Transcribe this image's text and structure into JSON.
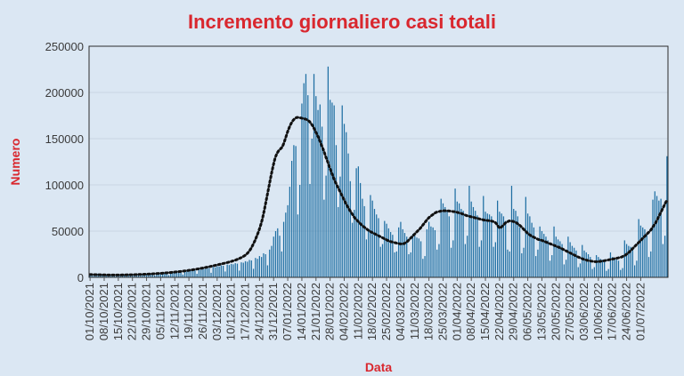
{
  "chart_data": {
    "type": "bar",
    "title": "Incremento giornaliero casi totali",
    "xlabel": "Data",
    "ylabel": "Numero",
    "ylim": [
      0,
      250000
    ],
    "y_ticks": [
      0,
      50000,
      100000,
      150000,
      200000,
      250000
    ],
    "y_tick_labels": [
      "0",
      "50000",
      "100000",
      "150000",
      "200000",
      "250000"
    ],
    "x_tick_labels": [
      "01/10/2021",
      "08/10/2021",
      "15/10/2021",
      "22/10/2021",
      "29/10/2021",
      "05/11/2021",
      "12/11/2021",
      "19/11/2021",
      "26/11/2021",
      "03/12/2021",
      "10/12/2021",
      "17/12/2021",
      "24/12/2021",
      "31/12/2021",
      "07/01/2022",
      "14/01/2022",
      "21/01/2022",
      "28/01/2022",
      "04/02/2022",
      "11/02/2022",
      "18/02/2022",
      "25/02/2022",
      "04/03/2022",
      "11/03/2022",
      "18/03/2022",
      "25/03/2022",
      "01/04/2022",
      "08/04/2022",
      "15/04/2022",
      "22/04/2022",
      "29/04/2022",
      "06/05/2022",
      "13/05/2022",
      "20/05/2022",
      "27/05/2022",
      "03/06/2022",
      "10/06/2022",
      "17/06/2022",
      "24/06/2022",
      "01/07/2022"
    ],
    "bar_color": "#1f6fa3",
    "trend_color": "#111111",
    "grid": true,
    "series": [
      {
        "type": "bar",
        "values": [
          3200,
          2800,
          3500,
          1800,
          4100,
          3600,
          3300,
          3000,
          2600,
          3100,
          2700,
          1500,
          3000,
          2500,
          2600,
          2300,
          2500,
          2800,
          1400,
          2700,
          2400,
          2900,
          2600,
          3100,
          3400,
          1700,
          3600,
          3300,
          3800,
          3500,
          4200,
          4000,
          2100,
          4300,
          4100,
          4600,
          4300,
          4900,
          4700,
          2400,
          5200,
          5000,
          5600,
          5400,
          6100,
          5900,
          3000,
          6800,
          6500,
          7300,
          7000,
          8000,
          7700,
          3800,
          8900,
          8500,
          9400,
          9100,
          10300,
          9900,
          4900,
          11300,
          10800,
          12100,
          11700,
          12900,
          12500,
          6300,
          13800,
          13300,
          14400,
          14100,
          15300,
          14800,
          7300,
          16200,
          15800,
          17400,
          16900,
          18800,
          18300,
          9200,
          21000,
          20000,
          23000,
          22000,
          26000,
          25000,
          13000,
          30000,
          34000,
          44000,
          50000,
          53000,
          45000,
          28000,
          60000,
          70000,
          78000,
          98000,
          126000,
          143000,
          142000,
          68000,
          100000,
          188000,
          210000,
          220000,
          197000,
          101000,
          150000,
          220000,
          196000,
          181000,
          187000,
          163000,
          84000,
          110000,
          228000,
          192000,
          189000,
          186000,
          143000,
          76000,
          109000,
          186000,
          166000,
          157000,
          134000,
          104000,
          59000,
          73000,
          118000,
          120000,
          102000,
          85000,
          77000,
          41000,
          51000,
          89000,
          83000,
          74000,
          68000,
          64000,
          33000,
          36000,
          61000,
          58000,
          53000,
          49000,
          46000,
          27000,
          28000,
          54000,
          60000,
          52000,
          48000,
          44000,
          25000,
          27000,
          47000,
          45000,
          43000,
          42000,
          39000,
          20000,
          23000,
          52000,
          60000,
          55000,
          54000,
          51000,
          30000,
          36000,
          85000,
          80000,
          76000,
          72000,
          66000,
          32000,
          40000,
          96000,
          82000,
          80000,
          74000,
          72000,
          36000,
          45000,
          99000,
          82000,
          76000,
          72000,
          67000,
          33000,
          40000,
          88000,
          71000,
          69000,
          68000,
          66000,
          33000,
          38000,
          83000,
          71000,
          69000,
          66000,
          61000,
          30000,
          28000,
          99000,
          74000,
          72000,
          66000,
          54000,
          26000,
          32000,
          87000,
          69000,
          66000,
          59000,
          54000,
          23000,
          30000,
          55000,
          50000,
          47000,
          44000,
          40000,
          18000,
          24000,
          55000,
          44000,
          41000,
          39000,
          36000,
          14000,
          19000,
          44000,
          38000,
          34000,
          32000,
          29000,
          11000,
          15000,
          35000,
          29000,
          27000,
          25000,
          22000,
          9000,
          11000,
          24000,
          22000,
          20000,
          19000,
          17000,
          7000,
          9000,
          27000,
          22000,
          21000,
          20000,
          18000,
          8000,
          10000,
          40000,
          36000,
          34000,
          33000,
          30000,
          13000,
          18000,
          63000,
          56000,
          54000,
          52000,
          48000,
          22000,
          28000,
          84000,
          93000,
          88000,
          83000,
          85000,
          36000,
          45000,
          131000
        ]
      },
      {
        "type": "line",
        "style": "dotted",
        "values": [
          3000,
          2950,
          2900,
          2850,
          2800,
          2750,
          2700,
          2650,
          2600,
          2580,
          2560,
          2540,
          2520,
          2500,
          2500,
          2510,
          2530,
          2560,
          2600,
          2640,
          2680,
          2720,
          2760,
          2820,
          2880,
          2940,
          3000,
          3080,
          3160,
          3240,
          3320,
          3420,
          3520,
          3620,
          3720,
          3840,
          3960,
          4080,
          4200,
          4350,
          4500,
          4650,
          4800,
          4980,
          5160,
          5340,
          5520,
          5740,
          5960,
          6180,
          6400,
          6650,
          6900,
          7150,
          7400,
          7700,
          8000,
          8300,
          8600,
          8950,
          9300,
          9650,
          10000,
          10400,
          10800,
          11200,
          11600,
          12050,
          12500,
          12950,
          13400,
          13850,
          14300,
          14750,
          15200,
          15700,
          16200,
          16750,
          17300,
          17900,
          18500,
          19300,
          20100,
          21000,
          22000,
          23200,
          24500,
          26500,
          29000,
          32000,
          36000,
          40000,
          45000,
          50000,
          56000,
          63000,
          72000,
          82000,
          92000,
          102000,
          112000,
          121000,
          129000,
          134000,
          137000,
          139000,
          141000,
          146000,
          152000,
          158000,
          163000,
          167000,
          170000,
          172000,
          173000,
          173000,
          172500,
          172000,
          171500,
          171000,
          170000,
          168500,
          166000,
          163000,
          159000,
          155000,
          151000,
          146000,
          141000,
          136000,
          130000,
          125000,
          119000,
          114000,
          109000,
          104000,
          100000,
          96000,
          92000,
          88000,
          84000,
          80000,
          76500,
          73000,
          70000,
          67000,
          64000,
          62000,
          60000,
          58000,
          56000,
          54500,
          53000,
          51500,
          50000,
          49000,
          48000,
          47000,
          46000,
          45000,
          44000,
          43000,
          42000,
          41000,
          40000,
          39000,
          38500,
          38000,
          37500,
          37000,
          36500,
          36200,
          36000,
          36500,
          37500,
          39000,
          41000,
          43000,
          45000,
          47000,
          49000,
          51000,
          53000,
          55500,
          58000,
          60500,
          63000,
          65000,
          66500,
          68000,
          69500,
          70500,
          71000,
          71500,
          71800,
          72000,
          72000,
          72000,
          71800,
          71500,
          71200,
          71000,
          70500,
          70000,
          69500,
          68800,
          68000,
          67200,
          66500,
          66000,
          65500,
          65000,
          64500,
          64000,
          63500,
          63000,
          62500,
          62000,
          61800,
          61500,
          61300,
          61000,
          60500,
          60000,
          58000,
          55000,
          53000,
          55000,
          57000,
          59000,
          60000,
          61000,
          61000,
          60500,
          60000,
          59000,
          57500,
          56000,
          54000,
          52000,
          50000,
          48000,
          46500,
          45000,
          44000,
          43000,
          42000,
          41000,
          40500,
          40000,
          39200,
          38400,
          37600,
          36800,
          36000,
          35200,
          34400,
          33600,
          32800,
          32000,
          31000,
          30000,
          29000,
          28000,
          27000,
          26000,
          25000,
          24000,
          23000,
          22000,
          21200,
          20400,
          19600,
          19000,
          18400,
          18000,
          17600,
          17300,
          17000,
          17000,
          17000,
          17200,
          17500,
          17800,
          18200,
          18600,
          19000,
          19400,
          19800,
          20200,
          20600,
          21000,
          21500,
          22000,
          23000,
          24000,
          25500,
          27000,
          29000,
          31000,
          33000,
          35000,
          37000,
          39000,
          41000,
          43000,
          45000,
          47000,
          49000,
          51000,
          54000,
          57000,
          60000,
          64000,
          68000,
          72000,
          76000,
          80000,
          84000
        ]
      }
    ]
  }
}
